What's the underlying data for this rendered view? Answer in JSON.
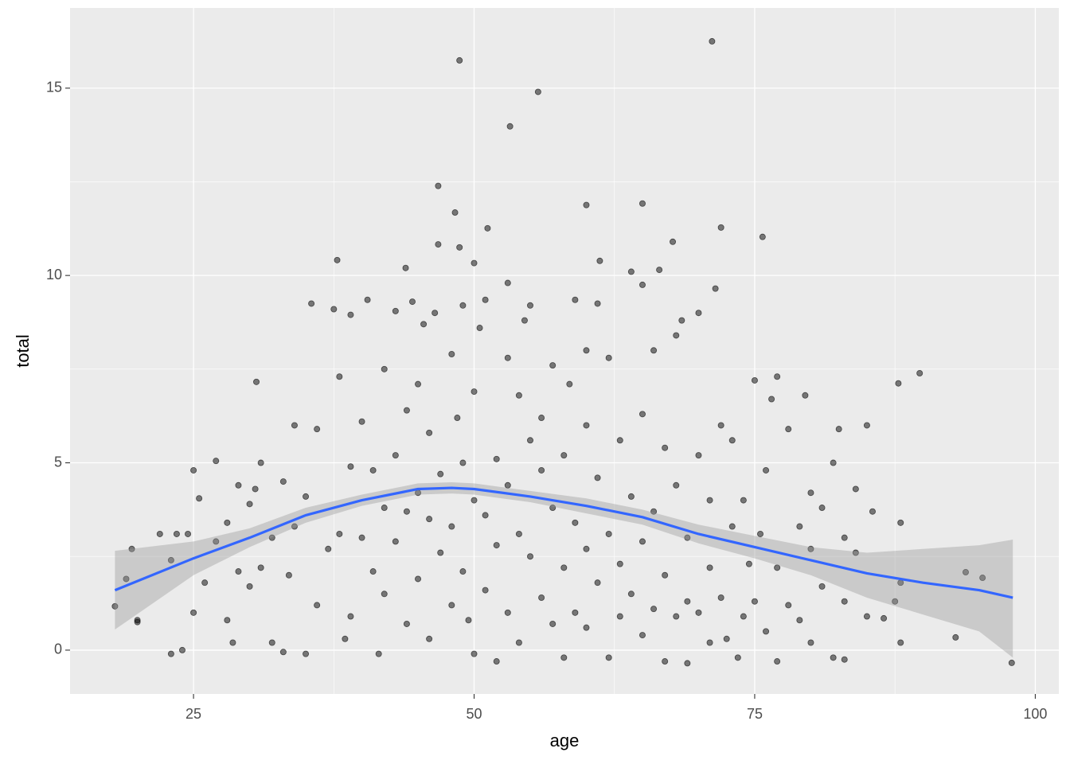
{
  "chart_data": {
    "type": "scatter",
    "x_label": "age",
    "y_label": "total",
    "xlim": [
      14.0,
      102.1
    ],
    "ylim": [
      -1.17,
      17.14
    ],
    "xticks": [
      25,
      50,
      75,
      100
    ],
    "yticks": [
      0,
      5,
      10,
      15
    ],
    "xminorticks": [
      37.5,
      62.5,
      87.5
    ],
    "yminorticks": [
      2.5,
      7.5,
      12.5
    ],
    "grid": true,
    "points": {
      "color": "#000000",
      "x": [
        71.2,
        48.7,
        55.7,
        53.2,
        46.8,
        48.3,
        60.0,
        65.0,
        72.0,
        75.7,
        51.2,
        46.8,
        48.7,
        67.7,
        37.8,
        50.0,
        43.9,
        61.2,
        89.7,
        87.8,
        30.6,
        18.0,
        97.9,
        92.9,
        93.8,
        95.3,
        19,
        19.5,
        20,
        20,
        22,
        23,
        23,
        23.5,
        24,
        24.5,
        25,
        25,
        25.5,
        26,
        27,
        27,
        28,
        28,
        28.5,
        29,
        29,
        30,
        30,
        30.5,
        31,
        31,
        32,
        32,
        33,
        33,
        33.5,
        34,
        34,
        35,
        35,
        35.5,
        36,
        36,
        37,
        37.5,
        38,
        38,
        38.5,
        39,
        39,
        39,
        40,
        40,
        40.5,
        41,
        41,
        41.5,
        42,
        42,
        42,
        43,
        43,
        43,
        44,
        44,
        44,
        44.5,
        45,
        45,
        45,
        45.5,
        46,
        46,
        46,
        46.5,
        47,
        47,
        48,
        48,
        48,
        48.5,
        49,
        49,
        49,
        49.5,
        50,
        50,
        50,
        50.5,
        51,
        51,
        51,
        52,
        52,
        52,
        53,
        53,
        53,
        53,
        54,
        54,
        54,
        54.5,
        55,
        55,
        55,
        56,
        56,
        56,
        57,
        57,
        57,
        58,
        58,
        58,
        58.5,
        59,
        59,
        59,
        60,
        60,
        60,
        60,
        61,
        61,
        61,
        62,
        62,
        62,
        63,
        63,
        63,
        64,
        64,
        64,
        65,
        65,
        65,
        65,
        66,
        66,
        66,
        66.5,
        67,
        67,
        67,
        68,
        68,
        68,
        68.5,
        69,
        69,
        69,
        70,
        70,
        70,
        71,
        71,
        71,
        71.5,
        72,
        72,
        72.5,
        73,
        73,
        73.5,
        74,
        74,
        74.5,
        75,
        75,
        75.5,
        76,
        76,
        76.5,
        77,
        77,
        77,
        78,
        78,
        79,
        79,
        79.5,
        80,
        80,
        80,
        81,
        81,
        82,
        82,
        82.5,
        83,
        83,
        83,
        84,
        84,
        85,
        85,
        85.5,
        86.5,
        87.5,
        88,
        88,
        88
      ],
      "y": [
        16.25,
        15.74,
        14.9,
        13.98,
        12.39,
        11.68,
        11.88,
        11.92,
        11.28,
        11.03,
        11.26,
        10.83,
        10.75,
        10.9,
        10.41,
        10.33,
        10.2,
        10.39,
        7.39,
        7.12,
        7.16,
        1.17,
        -0.34,
        0.34,
        2.08,
        1.93,
        1.9,
        2.7,
        0.8,
        0.75,
        3.1,
        -0.1,
        2.4,
        3.1,
        0,
        3.1,
        4.8,
        1.0,
        4.05,
        1.8,
        5.05,
        2.9,
        3.4,
        0.8,
        0.2,
        4.4,
        2.1,
        3.9,
        1.7,
        4.3,
        5.0,
        2.2,
        0.2,
        3.0,
        4.5,
        -0.05,
        2.0,
        6.0,
        3.3,
        -0.1,
        4.1,
        9.25,
        5.9,
        1.2,
        2.7,
        9.1,
        7.3,
        3.1,
        0.3,
        8.95,
        4.9,
        0.9,
        6.1,
        3.0,
        9.35,
        4.8,
        2.1,
        -0.1,
        7.5,
        3.8,
        1.5,
        5.2,
        9.05,
        2.9,
        6.4,
        3.7,
        0.7,
        9.3,
        4.2,
        1.9,
        7.1,
        8.7,
        3.5,
        5.8,
        0.3,
        9.0,
        4.7,
        2.6,
        7.9,
        3.3,
        1.2,
        6.2,
        5.0,
        9.2,
        2.1,
        0.8,
        6.9,
        4.0,
        -0.1,
        8.6,
        3.6,
        1.6,
        9.35,
        5.1,
        2.8,
        -0.3,
        7.8,
        4.4,
        9.8,
        1.0,
        6.8,
        3.1,
        0.2,
        8.8,
        5.6,
        2.5,
        9.2,
        4.8,
        1.4,
        6.2,
        3.8,
        7.6,
        0.7,
        5.2,
        2.2,
        -0.2,
        7.1,
        9.35,
        3.4,
        1.0,
        6.0,
        2.7,
        8.0,
        0.6,
        4.6,
        1.8,
        9.25,
        7.8,
        3.1,
        -0.2,
        5.6,
        2.3,
        0.9,
        10.1,
        4.1,
        1.5,
        9.75,
        6.3,
        2.9,
        0.4,
        3.7,
        8.0,
        1.1,
        10.15,
        5.4,
        2.0,
        -0.3,
        8.4,
        4.4,
        0.9,
        8.8,
        3.0,
        1.3,
        -0.35,
        5.2,
        9.0,
        1.0,
        4.0,
        2.2,
        0.2,
        9.65,
        6.0,
        1.4,
        0.3,
        3.3,
        5.6,
        -0.2,
        4.0,
        0.9,
        2.3,
        7.2,
        1.3,
        3.1,
        4.8,
        0.5,
        6.7,
        7.3,
        2.2,
        -0.3,
        5.9,
        1.2,
        3.3,
        0.8,
        6.8,
        4.2,
        2.7,
        0.2,
        1.7,
        3.8,
        5.0,
        -0.2,
        5.9,
        3.0,
        1.3,
        -0.25,
        4.3,
        2.6,
        6.0,
        0.9,
        3.7,
        0.85,
        1.3,
        3.4,
        1.8,
        0.2
      ]
    },
    "smooth": {
      "color": "#3366FF",
      "band_color": "#999999",
      "x": [
        18,
        25,
        30,
        35,
        40,
        45,
        48,
        50,
        55,
        60,
        65,
        70,
        75,
        80,
        85,
        90,
        95,
        98
      ],
      "y": [
        1.6,
        2.45,
        3.0,
        3.6,
        4.0,
        4.3,
        4.33,
        4.3,
        4.1,
        3.85,
        3.55,
        3.1,
        2.75,
        2.4,
        2.05,
        1.8,
        1.6,
        1.4
      ],
      "lower": [
        0.55,
        2.0,
        2.75,
        3.4,
        3.85,
        4.15,
        4.18,
        4.15,
        3.95,
        3.65,
        3.35,
        2.85,
        2.45,
        2.0,
        1.4,
        0.95,
        0.5,
        -0.2
      ],
      "upper": [
        2.65,
        2.9,
        3.25,
        3.8,
        4.15,
        4.45,
        4.48,
        4.45,
        4.25,
        4.05,
        3.75,
        3.35,
        3.05,
        2.75,
        2.6,
        2.7,
        2.8,
        2.95
      ]
    }
  }
}
